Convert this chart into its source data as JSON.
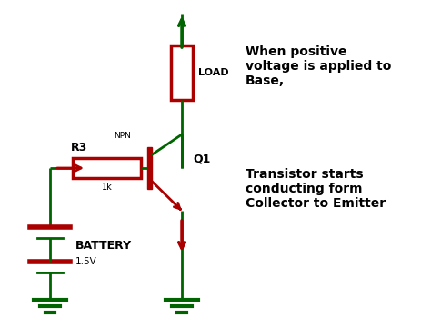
{
  "bg_color": "#ffffff",
  "dark_green": "#006400",
  "red": "#aa0000",
  "line_width": 2.0,
  "annotation_text1": "When positive\nvoltage is applied to\nBase,",
  "annotation_text2": "Transistor starts\nconducting form\nCollector to Emitter",
  "label_load": "LOAD",
  "label_q1": "Q1",
  "label_r3": "R3",
  "label_npn": "NPN",
  "label_1k": "1k",
  "label_battery": "BATTERY",
  "label_1v5": "1.5V"
}
